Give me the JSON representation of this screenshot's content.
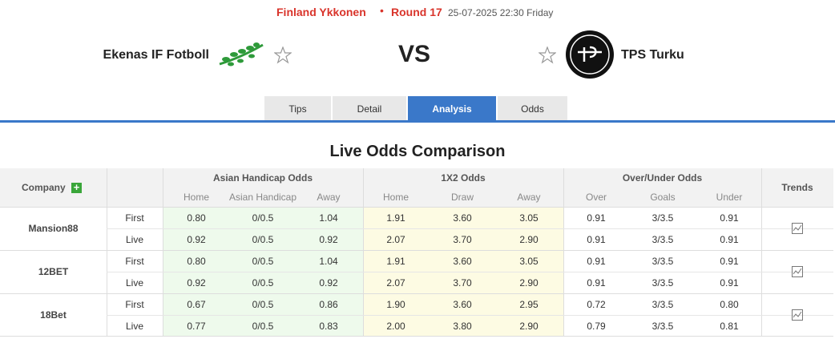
{
  "header": {
    "league": "Finland Ykkonen",
    "round": "Round 17",
    "datetime": "25-07-2025 22:30 Friday",
    "home_team": "Ekenas IF Fotboll",
    "vs": "VS",
    "away_team": "TPS Turku"
  },
  "tabs": [
    "Tips",
    "Detail",
    "Analysis",
    "Odds"
  ],
  "table": {
    "title": "Live Odds Comparison",
    "company_header": "Company",
    "trends_header": "Trends",
    "groups": [
      "Asian Handicap Odds",
      "1X2 Odds",
      "Over/Under Odds"
    ],
    "subheaders": [
      "Home",
      "Asian Handicap",
      "Away",
      "Home",
      "Draw",
      "Away",
      "Over",
      "Goals",
      "Under"
    ],
    "rows": [
      {
        "company": "Mansion88",
        "lines": [
          {
            "type": "First",
            "values": [
              "0.80",
              "0/0.5",
              "1.04",
              "1.91",
              "3.60",
              "3.05",
              "0.91",
              "3/3.5",
              "0.91"
            ]
          },
          {
            "type": "Live",
            "values": [
              "0.92",
              "0/0.5",
              "0.92",
              "2.07",
              "3.70",
              "2.90",
              "0.91",
              "3/3.5",
              "0.91"
            ]
          }
        ]
      },
      {
        "company": "12BET",
        "lines": [
          {
            "type": "First",
            "values": [
              "0.80",
              "0/0.5",
              "1.04",
              "1.91",
              "3.60",
              "3.05",
              "0.91",
              "3/3.5",
              "0.91"
            ]
          },
          {
            "type": "Live",
            "values": [
              "0.92",
              "0/0.5",
              "0.92",
              "2.07",
              "3.70",
              "2.90",
              "0.91",
              "3/3.5",
              "0.91"
            ]
          }
        ]
      },
      {
        "company": "18Bet",
        "lines": [
          {
            "type": "First",
            "values": [
              "0.67",
              "0/0.5",
              "0.86",
              "1.90",
              "3.60",
              "2.95",
              "0.72",
              "3/3.5",
              "0.80"
            ]
          },
          {
            "type": "Live",
            "values": [
              "0.77",
              "0/0.5",
              "0.83",
              "2.00",
              "3.80",
              "2.90",
              "0.79",
              "3/3.5",
              "0.81"
            ]
          }
        ]
      }
    ]
  }
}
